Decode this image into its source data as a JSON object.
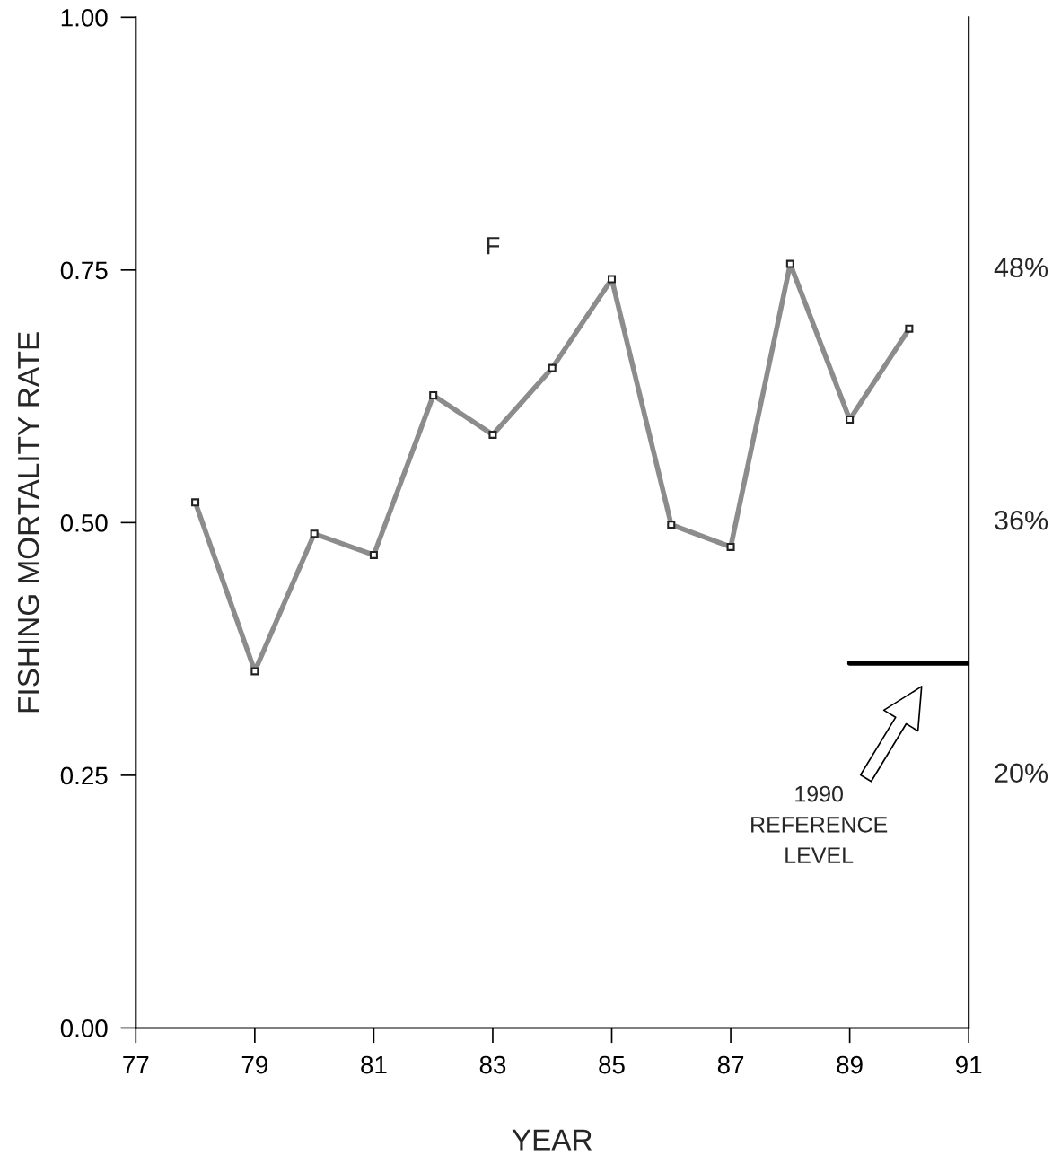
{
  "chart_data": {
    "type": "line",
    "xlabel": "YEAR",
    "ylabel": "FISHING MORTALITY RATE",
    "x": [
      78,
      79,
      80,
      81,
      82,
      83,
      84,
      85,
      86,
      87,
      88,
      89,
      90
    ],
    "series": [
      {
        "name": "F",
        "color": "#8c8c8c",
        "marker": "square",
        "values": [
          0.52,
          0.353,
          0.489,
          0.468,
          0.626,
          0.587,
          0.653,
          0.741,
          0.498,
          0.476,
          0.756,
          0.602,
          0.692
        ]
      },
      {
        "type": "line",
        "color": "#000000",
        "marker": "none",
        "x": [
          89,
          91
        ],
        "values": [
          0.361,
          0.361
        ]
      }
    ],
    "xlim": [
      77,
      91
    ],
    "xticks": [
      77,
      79,
      81,
      83,
      85,
      87,
      89,
      91
    ],
    "ylim": [
      0,
      1
    ],
    "yticks": [
      {
        "value": 0,
        "label": "0.00"
      },
      {
        "value": 0.25,
        "label": "0.25"
      },
      {
        "value": 0.5,
        "label": "0.50"
      },
      {
        "value": 0.75,
        "label": "0.75"
      },
      {
        "value": 1,
        "label": "1.00"
      }
    ],
    "annotations": [
      "48%",
      "36%",
      "20%",
      "1990\nREFERENCE\nLEVEL"
    ],
    "grid": false,
    "legend": false
  }
}
